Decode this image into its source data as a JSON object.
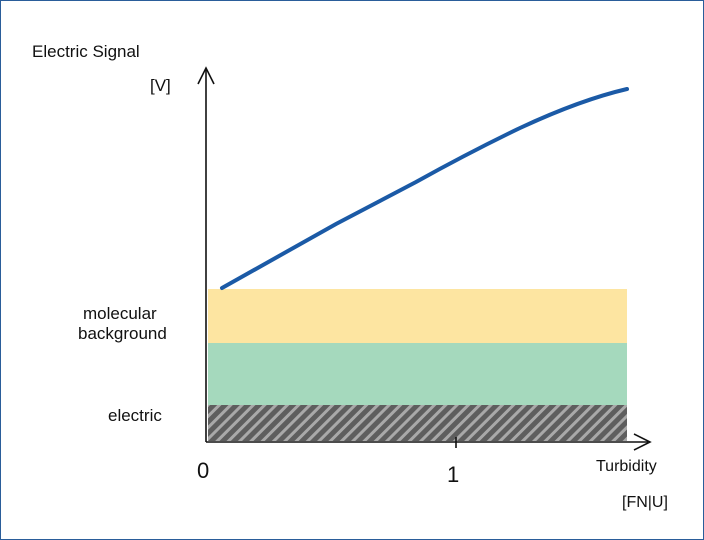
{
  "diagram": {
    "y_axis": {
      "label": "Electric Signal",
      "unit": "[V]"
    },
    "x_axis": {
      "label": "Turbidity",
      "unit": "[FN|U]",
      "ticks": [
        "0",
        "1"
      ]
    },
    "bands": [
      {
        "name": "molecular",
        "label": "molecular",
        "color": "#fde5a1"
      },
      {
        "name": "background",
        "label": "background",
        "color": "#a5d9bd"
      },
      {
        "name": "electric",
        "label": "electric",
        "color": "#6c6c6c",
        "pattern": "hatched"
      }
    ],
    "curve_color": "#1b5aa6",
    "frame_color": "#2a5d9a"
  }
}
